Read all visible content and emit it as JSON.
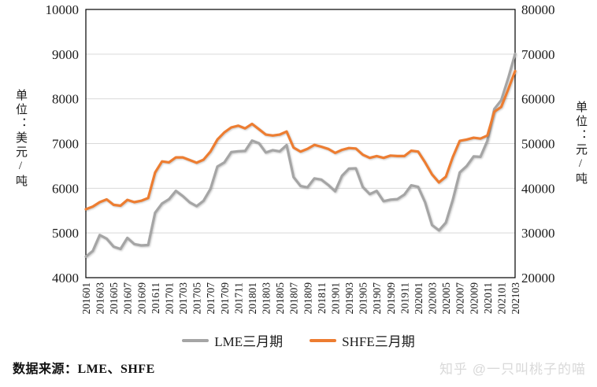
{
  "chart_data": {
    "type": "line",
    "title": "",
    "grid": true,
    "legend_position": "bottom",
    "plot_border_color": "#000000",
    "gridline_color": "#d9d9d9",
    "x": [
      "201601",
      "201602",
      "201603",
      "201604",
      "201605",
      "201606",
      "201607",
      "201608",
      "201609",
      "201610",
      "201611",
      "201612",
      "201701",
      "201702",
      "201703",
      "201704",
      "201705",
      "201706",
      "201707",
      "201708",
      "201709",
      "201710",
      "201711",
      "201712",
      "201801",
      "201802",
      "201803",
      "201804",
      "201805",
      "201806",
      "201807",
      "201808",
      "201809",
      "201810",
      "201811",
      "201812",
      "201901",
      "201902",
      "201903",
      "201904",
      "201905",
      "201906",
      "201907",
      "201908",
      "201909",
      "201910",
      "201911",
      "201912",
      "202001",
      "202002",
      "202003",
      "202004",
      "202005",
      "202006",
      "202007",
      "202008",
      "202009",
      "202010",
      "202011",
      "202012",
      "202101",
      "202102",
      "202103"
    ],
    "x_tick_every": 2,
    "left_axis": {
      "title": "单位：美元/吨",
      "min": 4000,
      "max": 10000,
      "step": 1000,
      "ticks": [
        "4000",
        "5000",
        "6000",
        "7000",
        "8000",
        "9000",
        "10000"
      ]
    },
    "right_axis": {
      "title": "单位：元/吨",
      "min": 20000,
      "max": 80000,
      "step": 10000,
      "ticks": [
        "20000",
        "30000",
        "40000",
        "50000",
        "60000",
        "70000",
        "80000"
      ]
    },
    "series": [
      {
        "name": "LME三月期",
        "axis": "left",
        "color": "#a5a5a5",
        "values": [
          4472,
          4599,
          4954,
          4873,
          4694,
          4642,
          4890,
          4751,
          4722,
          4731,
          5451,
          5660,
          5755,
          5941,
          5824,
          5684,
          5600,
          5720,
          5985,
          6486,
          6577,
          6808,
          6827,
          6834,
          7066,
          7007,
          6799,
          6852,
          6825,
          6966,
          6250,
          6051,
          6020,
          6220,
          6195,
          6075,
          5932,
          6278,
          6439,
          6445,
          6027,
          5868,
          5940,
          5710,
          5746,
          5757,
          5860,
          6065,
          6031,
          5688,
          5178,
          5058,
          5234,
          5742,
          6354,
          6497,
          6712,
          6703,
          7063,
          7772,
          7971,
          8460,
          9005
        ]
      },
      {
        "name": "SHFE三月期",
        "axis": "right",
        "color": "#ed7d31",
        "values": [
          35300,
          35900,
          36900,
          37500,
          36300,
          36100,
          37400,
          36900,
          37200,
          37800,
          43500,
          46000,
          45800,
          46900,
          46900,
          46300,
          45700,
          46400,
          48200,
          50900,
          52500,
          53600,
          54000,
          53400,
          54400,
          53200,
          52000,
          51800,
          52000,
          52700,
          49100,
          48200,
          48800,
          49700,
          49300,
          48800,
          47900,
          48600,
          49000,
          48900,
          47500,
          46800,
          47200,
          46800,
          47300,
          47200,
          47200,
          48400,
          48200,
          45800,
          43100,
          41300,
          42600,
          47000,
          50600,
          50900,
          51300,
          51100,
          51800,
          57100,
          58200,
          62100,
          66200
        ]
      }
    ]
  },
  "footer": {
    "source_label": "数据来源：LME、SHFE"
  },
  "watermark": {
    "text": "知乎 @一只叫桃子的喵",
    "color": "#d9d9d9"
  }
}
